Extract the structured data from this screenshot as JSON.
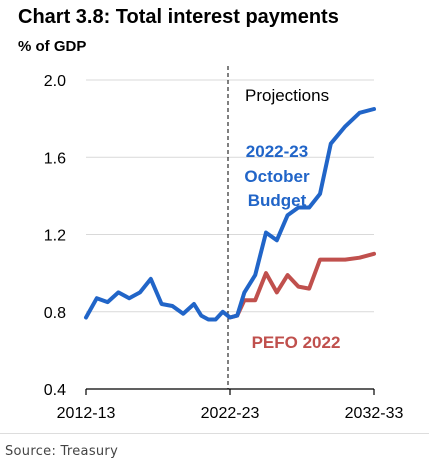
{
  "title": "Chart 3.8: Total interest payments",
  "unit_label": "% of GDP",
  "source": "Source:  Treasury",
  "chart_data": {
    "type": "line",
    "title": "Chart 3.8: Total interest payments",
    "ylabel": "% of GDP",
    "ylim": [
      0.4,
      2.0
    ],
    "yticks": [
      0.4,
      0.8,
      1.2,
      1.6,
      2.0
    ],
    "ytick_labels": [
      "0.4",
      "0.8",
      "1.2",
      "1.6",
      "2.0"
    ],
    "xlim": [
      2012,
      2032
    ],
    "xticks": [
      2012,
      2022,
      2032
    ],
    "xtick_labels": [
      "2012-13",
      "2022-23",
      "2032-33"
    ],
    "grid": true,
    "projection_start": 2022,
    "projection_label": "Projections",
    "series": [
      {
        "name": "2022-23 October Budget",
        "label_lines": [
          "2022-23",
          "October",
          "Budget"
        ],
        "color": "#2165c8",
        "points": [
          [
            2012.0,
            0.77
          ],
          [
            2012.75,
            0.87
          ],
          [
            2013.5,
            0.85
          ],
          [
            2014.25,
            0.9
          ],
          [
            2015.0,
            0.87
          ],
          [
            2015.75,
            0.9
          ],
          [
            2016.5,
            0.97
          ],
          [
            2017.25,
            0.84
          ],
          [
            2018.0,
            0.83
          ],
          [
            2018.75,
            0.79
          ],
          [
            2019.5,
            0.84
          ],
          [
            2020.0,
            0.78
          ],
          [
            2020.5,
            0.76
          ],
          [
            2021.0,
            0.76
          ],
          [
            2021.5,
            0.8
          ],
          [
            2022.0,
            0.77
          ],
          [
            2022.5,
            0.78
          ],
          [
            2023.0,
            0.9
          ],
          [
            2023.75,
            0.99
          ],
          [
            2024.5,
            1.21
          ],
          [
            2025.25,
            1.17
          ],
          [
            2026.0,
            1.3
          ],
          [
            2026.75,
            1.34
          ],
          [
            2027.5,
            1.34
          ],
          [
            2028.25,
            1.41
          ],
          [
            2029.0,
            1.67
          ],
          [
            2030.0,
            1.76
          ],
          [
            2031.0,
            1.83
          ],
          [
            2032.0,
            1.85
          ]
        ]
      },
      {
        "name": "PEFO 2022",
        "color": "#c0504d",
        "points": [
          [
            2022.0,
            0.77
          ],
          [
            2022.5,
            0.78
          ],
          [
            2023.0,
            0.86
          ],
          [
            2023.75,
            0.86
          ],
          [
            2024.5,
            1.0
          ],
          [
            2025.25,
            0.9
          ],
          [
            2026.0,
            0.99
          ],
          [
            2026.75,
            0.93
          ],
          [
            2027.5,
            0.92
          ],
          [
            2028.25,
            1.07
          ],
          [
            2029.0,
            1.07
          ],
          [
            2030.0,
            1.07
          ],
          [
            2031.0,
            1.08
          ],
          [
            2032.0,
            1.1
          ]
        ]
      }
    ]
  }
}
